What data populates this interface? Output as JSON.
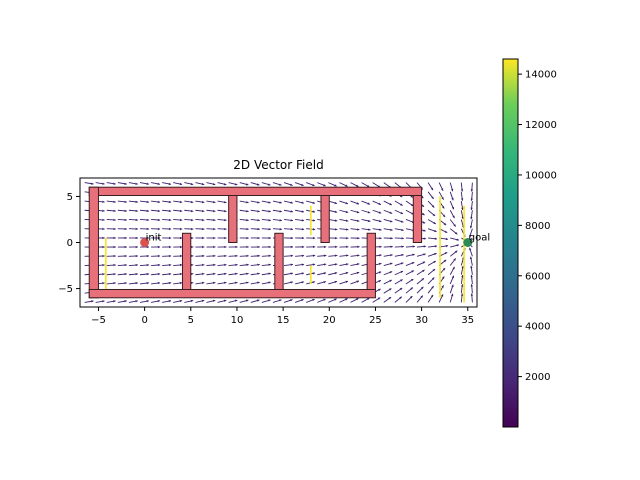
{
  "chart_data": [
    {
      "type": "quiver",
      "title": "2D Vector Field",
      "xlabel": "",
      "ylabel": "",
      "xlim": [
        -7,
        36
      ],
      "ylim": [
        -7,
        7
      ],
      "xticks": [
        -5,
        0,
        5,
        10,
        15,
        20,
        25,
        30,
        35
      ],
      "yticks": [
        -5,
        0,
        5
      ],
      "grid": false,
      "arrow_color": "#3b1f6e",
      "streak_color": "#f5e61f",
      "points": [
        {
          "name": "init",
          "label": "init",
          "x": 0,
          "y": 0,
          "color": "#d9534f"
        },
        {
          "name": "goal",
          "label": "goal",
          "x": 35,
          "y": 0,
          "color": "#2e8b57"
        }
      ],
      "obstacles": [
        {
          "x0": -6,
          "x1": 30,
          "y0": 5.1,
          "y1": 6.0
        },
        {
          "x0": -6,
          "x1": -5,
          "y0": -6.0,
          "y1": 6.0
        },
        {
          "x0": -6,
          "x1": 25,
          "y0": -6.0,
          "y1": -5.1
        },
        {
          "x0": 4.1,
          "x1": 5.0,
          "y0": -5.1,
          "y1": 1.0
        },
        {
          "x0": 9.1,
          "x1": 10.0,
          "y0": 0,
          "y1": 5.1
        },
        {
          "x0": 14.1,
          "x1": 15.0,
          "y0": -5.1,
          "y1": 1.0
        },
        {
          "x0": 19.1,
          "x1": 20.0,
          "y0": 0,
          "y1": 5.1
        },
        {
          "x0": 24.1,
          "x1": 25.0,
          "y0": -5.1,
          "y1": 1.0
        },
        {
          "x0": 29.1,
          "x1": 30.0,
          "y0": 0,
          "y1": 5.1
        }
      ],
      "obstacle_fill": "#e8707a",
      "obstacle_edge": "#3a1f22"
    },
    {
      "type": "colorbar",
      "range": [
        0,
        14600
      ],
      "ticks": [
        2000,
        4000,
        6000,
        8000,
        10000,
        12000,
        14000
      ],
      "colormap": "viridis"
    }
  ]
}
